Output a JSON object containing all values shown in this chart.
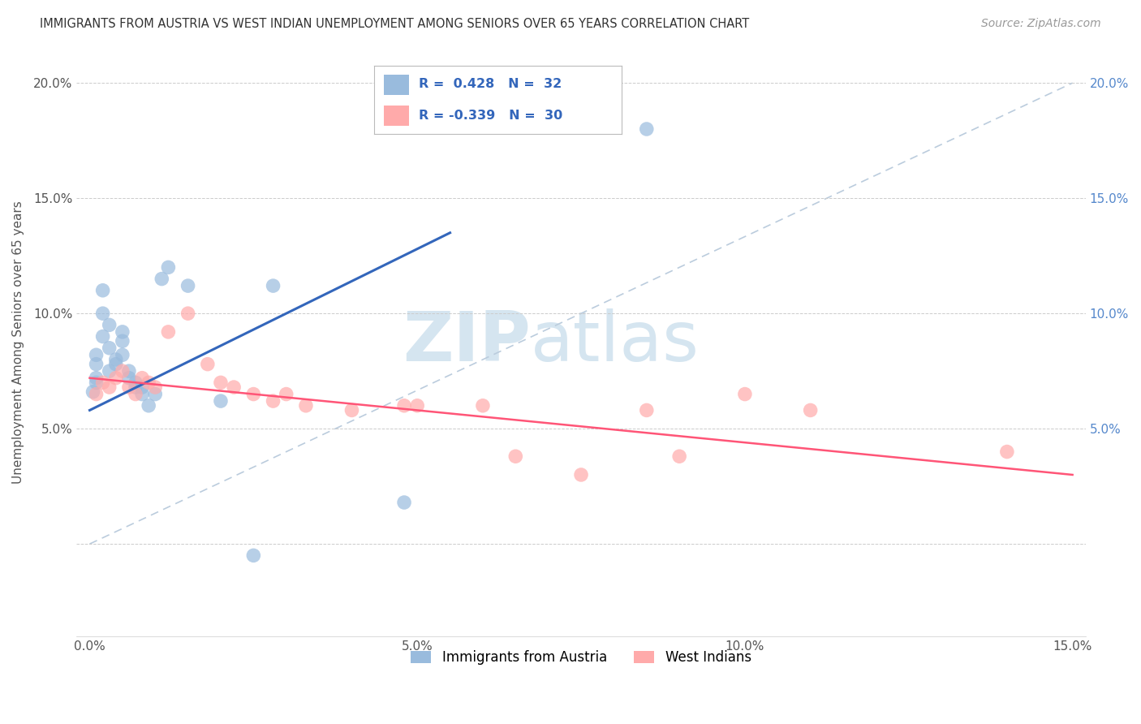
{
  "title": "IMMIGRANTS FROM AUSTRIA VS WEST INDIAN UNEMPLOYMENT AMONG SENIORS OVER 65 YEARS CORRELATION CHART",
  "source": "Source: ZipAtlas.com",
  "ylabel": "Unemployment Among Seniors over 65 years",
  "xlim": [
    -0.002,
    0.152
  ],
  "ylim": [
    -0.04,
    0.215
  ],
  "xticks": [
    0.0,
    0.05,
    0.1,
    0.15
  ],
  "xtick_labels": [
    "0.0%",
    "5.0%",
    "10.0%",
    "15.0%"
  ],
  "yticks": [
    0.0,
    0.05,
    0.1,
    0.15,
    0.2
  ],
  "ytick_labels": [
    "",
    "5.0%",
    "10.0%",
    "15.0%",
    "20.0%"
  ],
  "right_ytick_labels": [
    "",
    "5.0%",
    "10.0%",
    "15.0%",
    "20.0%"
  ],
  "blue_label": "Immigrants from Austria",
  "pink_label": "West Indians",
  "blue_R": 0.428,
  "blue_N": 32,
  "pink_R": -0.339,
  "pink_N": 30,
  "blue_color": "#99BBDD",
  "pink_color": "#FFAAAA",
  "blue_line_color": "#3366BB",
  "pink_line_color": "#FF5577",
  "ref_line_color": "#BBCCDD",
  "watermark_color": "#D5E5F0",
  "background_color": "#FFFFFF",
  "blue_x": [
    0.0005,
    0.001,
    0.001,
    0.001,
    0.001,
    0.002,
    0.002,
    0.002,
    0.003,
    0.003,
    0.003,
    0.004,
    0.004,
    0.005,
    0.005,
    0.005,
    0.006,
    0.006,
    0.007,
    0.007,
    0.008,
    0.008,
    0.009,
    0.01,
    0.011,
    0.012,
    0.015,
    0.02,
    0.025,
    0.028,
    0.048,
    0.085
  ],
  "blue_y": [
    0.066,
    0.072,
    0.078,
    0.082,
    0.07,
    0.1,
    0.11,
    0.09,
    0.095,
    0.085,
    0.075,
    0.08,
    0.078,
    0.088,
    0.082,
    0.092,
    0.072,
    0.075,
    0.068,
    0.07,
    0.068,
    0.065,
    0.06,
    0.065,
    0.115,
    0.12,
    0.112,
    0.062,
    -0.005,
    0.112,
    0.018,
    0.18
  ],
  "pink_x": [
    0.001,
    0.002,
    0.003,
    0.004,
    0.005,
    0.006,
    0.007,
    0.008,
    0.009,
    0.01,
    0.012,
    0.015,
    0.018,
    0.02,
    0.022,
    0.025,
    0.028,
    0.03,
    0.033,
    0.04,
    0.048,
    0.05,
    0.06,
    0.065,
    0.075,
    0.085,
    0.09,
    0.1,
    0.11,
    0.14
  ],
  "pink_y": [
    0.065,
    0.07,
    0.068,
    0.072,
    0.075,
    0.068,
    0.065,
    0.072,
    0.07,
    0.068,
    0.092,
    0.1,
    0.078,
    0.07,
    0.068,
    0.065,
    0.062,
    0.065,
    0.06,
    0.058,
    0.06,
    0.06,
    0.06,
    0.038,
    0.03,
    0.058,
    0.038,
    0.065,
    0.058,
    0.04
  ],
  "blue_line_x": [
    0.0,
    0.055
  ],
  "blue_line_y_start": 0.058,
  "blue_line_y_end": 0.135,
  "pink_line_x": [
    0.0,
    0.15
  ],
  "pink_line_y_start": 0.072,
  "pink_line_y_end": 0.03
}
